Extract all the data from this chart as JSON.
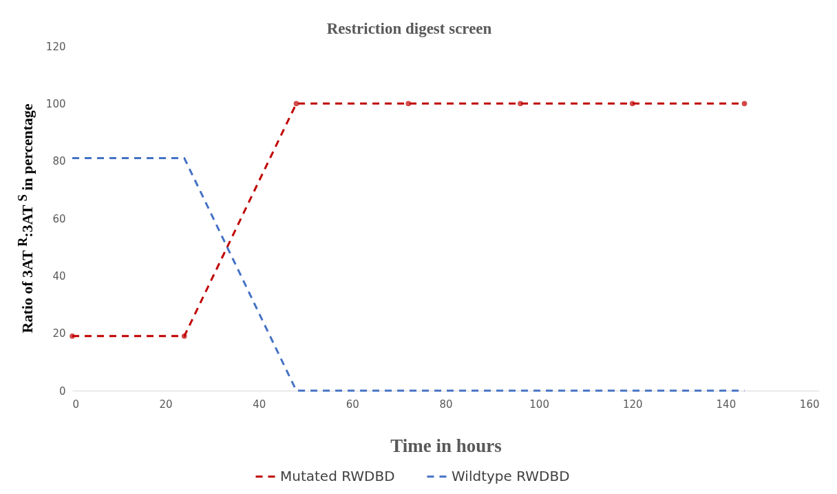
{
  "chart_data": {
    "type": "line",
    "title": "Restriction digest screen",
    "xlabel": "Time in hours",
    "ylabel": "Ratio of 3AT $^{R}$:3AT $^{S}$ in percentage",
    "x": [
      0,
      24,
      48,
      72,
      96,
      120,
      144
    ],
    "series": [
      {
        "name": "Mutated RWDBD",
        "color": "#c00000",
        "values": [
          19,
          19,
          100,
          100,
          100,
          100,
          100
        ],
        "marker": "circle",
        "line_style": "dashed"
      },
      {
        "name": "Wildtype RWDBD",
        "color": "#4472c4",
        "values": [
          81,
          81,
          0,
          0,
          0,
          0,
          0
        ],
        "marker": "none",
        "line_style": "dashed"
      }
    ],
    "xlim": [
      0,
      160
    ],
    "xticks": [
      0,
      20,
      40,
      60,
      80,
      100,
      120,
      140,
      160
    ],
    "ylim": [
      0,
      120
    ],
    "yticks": [
      0,
      20,
      40,
      60,
      80,
      100,
      120
    ],
    "grid": false,
    "legend": "bottom"
  }
}
